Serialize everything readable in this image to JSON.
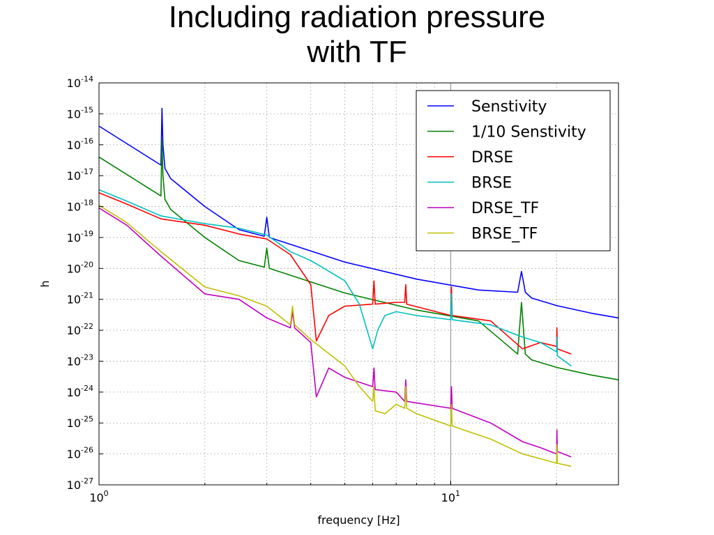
{
  "slide": {
    "title_line1": "Including radiation pressure",
    "title_line2": "with TF"
  },
  "chart_data": {
    "type": "line",
    "title": "",
    "xlabel": "frequency [Hz]",
    "ylabel": "h",
    "xscale": "log",
    "yscale": "log",
    "xlim": [
      1,
      30
    ],
    "ylim": [
      1e-27,
      1e-14
    ],
    "grid": true,
    "legend_position": "top-right",
    "x_ticks": [
      {
        "base": "10",
        "exp": "0",
        "value": 1
      },
      {
        "base": "10",
        "exp": "1",
        "value": 10
      }
    ],
    "y_ticks": [
      {
        "base": "10",
        "exp": "-14",
        "value": -14
      },
      {
        "base": "10",
        "exp": "-15",
        "value": -15
      },
      {
        "base": "10",
        "exp": "-16",
        "value": -16
      },
      {
        "base": "10",
        "exp": "-17",
        "value": -17
      },
      {
        "base": "10",
        "exp": "-18",
        "value": -18
      },
      {
        "base": "10",
        "exp": "-19",
        "value": -19
      },
      {
        "base": "10",
        "exp": "-20",
        "value": -20
      },
      {
        "base": "10",
        "exp": "-21",
        "value": -21
      },
      {
        "base": "10",
        "exp": "-22",
        "value": -22
      },
      {
        "base": "10",
        "exp": "-23",
        "value": -23
      },
      {
        "base": "10",
        "exp": "-24",
        "value": -24
      },
      {
        "base": "10",
        "exp": "-25",
        "value": -25
      },
      {
        "base": "10",
        "exp": "-26",
        "value": -26
      },
      {
        "base": "10",
        "exp": "-27",
        "value": -27
      }
    ],
    "series": [
      {
        "name": "Senstivity",
        "color": "#0000ff",
        "x": [
          1,
          1.5,
          1.51,
          1.52,
          1.54,
          1.6,
          2.0,
          2.5,
          2.95,
          3.0,
          3.05,
          5,
          8,
          12,
          15.5,
          15.9,
          16.3,
          17,
          20,
          25,
          30
        ],
        "y": [
          4e-16,
          2.2e-17,
          1.5e-15,
          1e-16,
          1.7e-17,
          8e-18,
          1e-18,
          1.8e-19,
          1.1e-19,
          4.5e-19,
          1e-19,
          1.6e-20,
          4.5e-21,
          2e-21,
          1.7e-21,
          8e-21,
          1.7e-21,
          1.1e-21,
          6.3e-22,
          3.6e-22,
          2.5e-22
        ]
      },
      {
        "name": "1/10 Senstivity",
        "color": "#008000",
        "x": [
          1,
          1.5,
          1.51,
          1.52,
          1.54,
          1.6,
          2.0,
          2.5,
          2.95,
          3.0,
          3.05,
          5,
          8,
          12,
          15.5,
          15.9,
          16.3,
          17,
          20,
          25,
          30
        ],
        "y": [
          4e-17,
          2.2e-18,
          1.5e-16,
          1e-17,
          1.7e-18,
          8e-19,
          1e-19,
          1.8e-20,
          1.1e-20,
          4.5e-20,
          1e-20,
          1.6e-21,
          4.5e-22,
          2e-22,
          1.7e-23,
          8e-22,
          1.7e-23,
          1.1e-23,
          6.3e-24,
          3.6e-24,
          2.5e-24
        ]
      },
      {
        "name": "DRSE",
        "color": "#ff0000",
        "x": [
          1,
          1.2,
          1.5,
          2.0,
          2.5,
          3.0,
          3.5,
          4.0,
          4.15,
          4.5,
          5.0,
          6.0,
          6.05,
          6.1,
          7.0,
          7.4,
          7.45,
          7.5,
          10,
          10.05,
          10.1,
          13,
          16,
          18,
          20,
          20.05,
          20.1,
          22
        ],
        "y": [
          2.8e-18,
          1.2e-18,
          4e-19,
          2.5e-19,
          1.3e-19,
          9e-20,
          2.8e-20,
          3e-21,
          4.5e-23,
          3e-22,
          6e-22,
          7e-22,
          4e-21,
          7e-22,
          8e-22,
          8e-22,
          3e-21,
          7e-22,
          3e-22,
          2.5e-21,
          3e-22,
          2e-22,
          2.5e-23,
          4e-23,
          3e-23,
          1.2e-22,
          2.5e-23,
          1.7e-23
        ]
      },
      {
        "name": "BRSE",
        "color": "#00bfbf",
        "x": [
          1,
          1.2,
          1.5,
          2.0,
          2.5,
          3.0,
          3.5,
          4.0,
          5.0,
          5.5,
          6.0,
          6.2,
          6.5,
          7.0,
          8.0,
          10,
          10.05,
          10.1,
          13,
          16,
          18,
          20,
          20.05,
          20.1,
          22
        ],
        "y": [
          3.5e-18,
          1.5e-18,
          5e-19,
          2.8e-19,
          2e-19,
          1.2e-19,
          3.5e-20,
          1.8e-20,
          4e-21,
          7e-22,
          2.5e-23,
          1e-22,
          3e-22,
          4e-22,
          3e-22,
          2.2e-22,
          1.5e-21,
          2.2e-22,
          1.5e-22,
          6e-23,
          4e-23,
          2e-23,
          6e-23,
          1.5e-23,
          7e-24
        ]
      },
      {
        "name": "DRSE_TF",
        "color": "#bf00bf",
        "x": [
          1,
          1.2,
          1.5,
          2.0,
          2.5,
          3.0,
          3.5,
          3.55,
          3.6,
          4.0,
          4.15,
          4.5,
          5.0,
          6.0,
          6.05,
          6.1,
          7.0,
          7.4,
          7.45,
          7.5,
          10,
          10.05,
          10.1,
          13,
          16,
          18,
          20,
          20.05,
          20.1,
          22
        ],
        "y": [
          9e-19,
          2.5e-19,
          2.5e-20,
          1.5e-21,
          1e-21,
          2.5e-22,
          1.2e-22,
          4e-22,
          1.2e-22,
          4e-23,
          7e-25,
          6e-24,
          3e-24,
          1.5e-24,
          6e-24,
          1.2e-24,
          1e-24,
          5e-25,
          2.5e-24,
          5e-25,
          3e-25,
          1.5e-24,
          3e-25,
          1e-25,
          2.5e-26,
          1.6e-26,
          1e-26,
          6e-26,
          1.2e-26,
          8e-27
        ]
      },
      {
        "name": "BRSE_TF",
        "color": "#bfbf00",
        "x": [
          1,
          1.2,
          1.5,
          2.0,
          2.5,
          3.0,
          3.5,
          3.55,
          3.6,
          4.0,
          5.0,
          5.5,
          6.0,
          6.05,
          6.1,
          6.5,
          7.0,
          7.4,
          7.45,
          7.5,
          8.0,
          10,
          10.05,
          10.1,
          13,
          16,
          18,
          20,
          20.05,
          20.1,
          22
        ],
        "y": [
          1.1e-18,
          3e-19,
          3.5e-20,
          2.5e-21,
          1.3e-21,
          6e-22,
          1.5e-22,
          6e-22,
          1.5e-22,
          5e-23,
          7e-24,
          1.5e-24,
          5e-25,
          1.5e-24,
          2.5e-25,
          2e-25,
          4e-25,
          3e-25,
          1.5e-24,
          3e-25,
          2e-25,
          8e-26,
          4e-25,
          8e-26,
          3e-26,
          1e-26,
          7e-27,
          5e-27,
          2e-26,
          5e-27,
          4e-27
        ]
      }
    ]
  }
}
